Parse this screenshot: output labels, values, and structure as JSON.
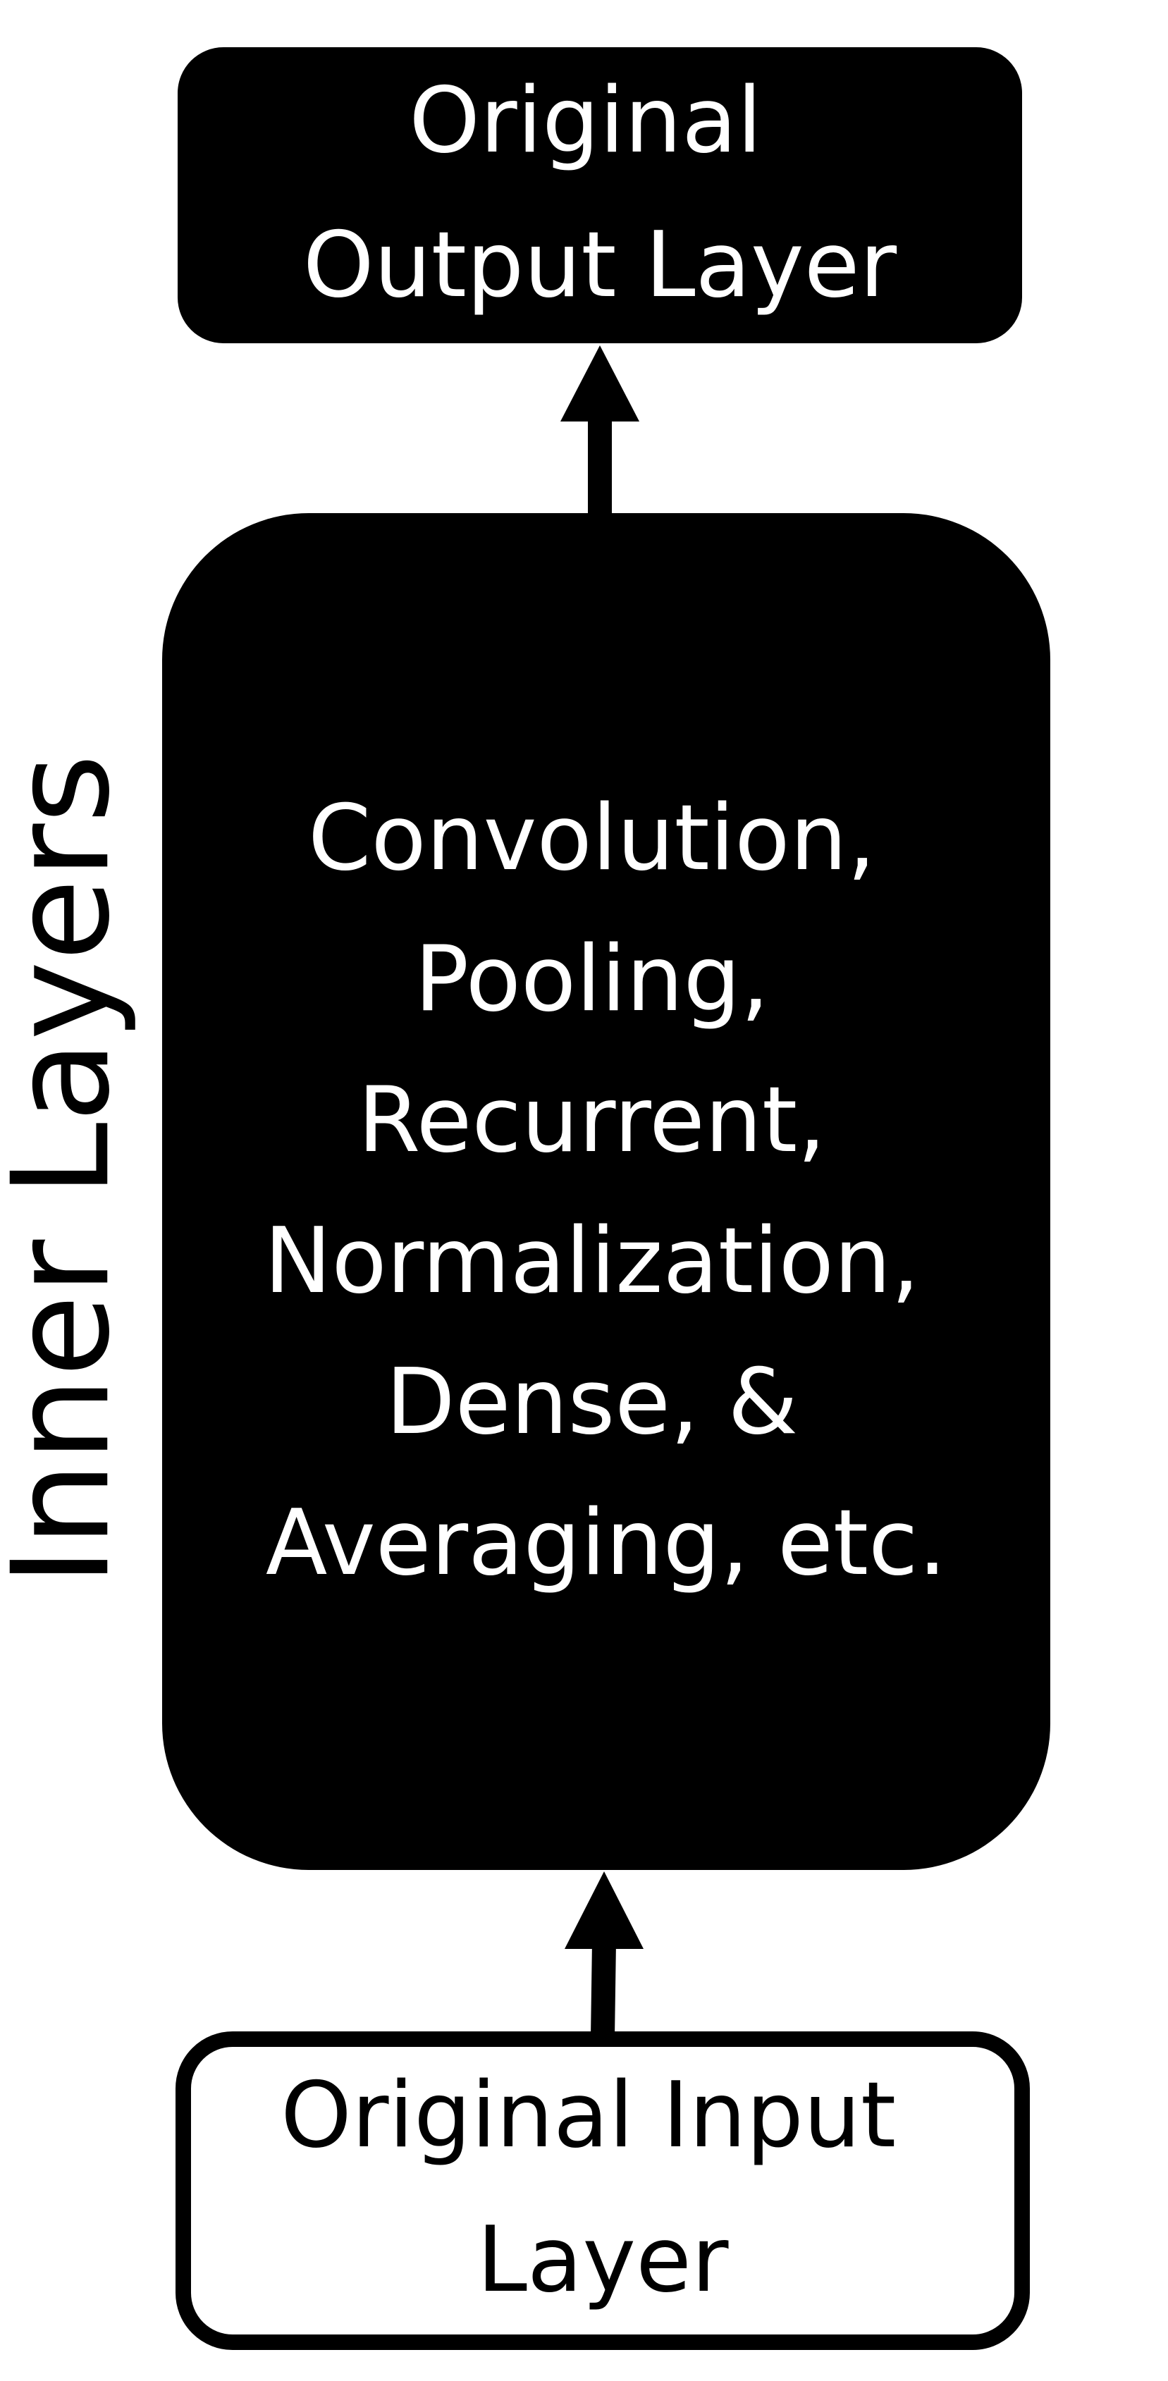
{
  "diagram": {
    "side_label": "Inner Layers",
    "nodes": {
      "output": {
        "lines": [
          "Original",
          "Output Layer"
        ]
      },
      "inner": {
        "lines": [
          "Convolution,",
          "Pooling,",
          "Recurrent,",
          "Normalization,",
          "Dense, &",
          "Averaging, etc."
        ]
      },
      "input": {
        "lines": [
          "Original Input",
          "Layer"
        ]
      }
    },
    "edges": [
      {
        "from": "input",
        "to": "inner"
      },
      {
        "from": "inner",
        "to": "output"
      }
    ],
    "colors": {
      "fill_dark": "#000000",
      "fill_light": "#ffffff",
      "text_on_dark": "#ffffff",
      "text_on_light": "#000000",
      "stroke": "#000000"
    }
  }
}
